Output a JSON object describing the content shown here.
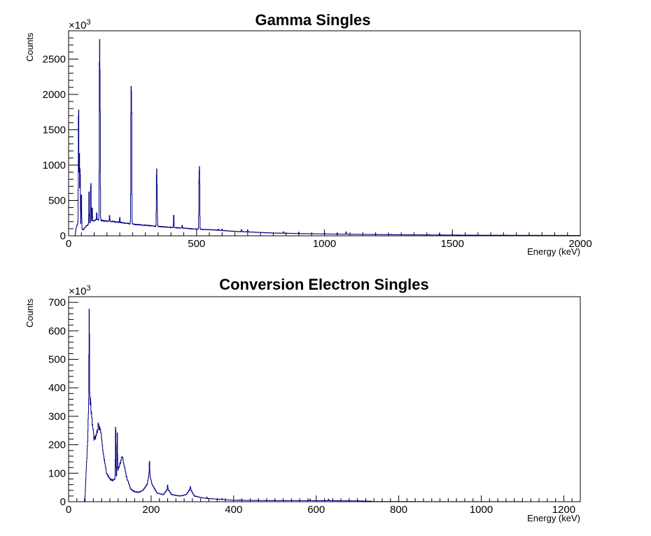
{
  "chart_data": [
    {
      "type": "line",
      "title": "Gamma Singles",
      "xlabel": "Energy (keV)",
      "ylabel": "Counts",
      "y_multiplier": "×10",
      "y_multiplier_exp": "3",
      "xlim": [
        0,
        2000
      ],
      "ylim": [
        0,
        2900
      ],
      "x_ticks": [
        0,
        500,
        1000,
        1500,
        2000
      ],
      "y_ticks": [
        0,
        500,
        1000,
        1500,
        2000,
        2500
      ],
      "x_minor_step": 50,
      "y_minor_step": 100,
      "grid": false,
      "line_color": "#000080",
      "baseline": [
        [
          0,
          0
        ],
        [
          25,
          0
        ],
        [
          30,
          120
        ],
        [
          40,
          200
        ],
        [
          55,
          80
        ],
        [
          70,
          140
        ],
        [
          90,
          200
        ],
        [
          110,
          230
        ],
        [
          140,
          210
        ],
        [
          180,
          200
        ],
        [
          220,
          180
        ],
        [
          260,
          160
        ],
        [
          300,
          150
        ],
        [
          340,
          135
        ],
        [
          380,
          125
        ],
        [
          420,
          115
        ],
        [
          460,
          105
        ],
        [
          500,
          95
        ],
        [
          560,
          85
        ],
        [
          600,
          75
        ],
        [
          650,
          62
        ],
        [
          700,
          55
        ],
        [
          800,
          40
        ],
        [
          900,
          32
        ],
        [
          1000,
          26
        ],
        [
          1100,
          22
        ],
        [
          1200,
          18
        ],
        [
          1300,
          15
        ],
        [
          1400,
          13
        ],
        [
          1500,
          11
        ],
        [
          1600,
          9
        ],
        [
          1700,
          8
        ],
        [
          1800,
          7
        ],
        [
          1900,
          6
        ],
        [
          2000,
          5
        ]
      ],
      "peaks": [
        {
          "x": 39,
          "y": 2000
        },
        {
          "x": 42,
          "y": 1280
        },
        {
          "x": 45,
          "y": 1020
        },
        {
          "x": 50,
          "y": 660
        },
        {
          "x": 80,
          "y": 700
        },
        {
          "x": 87,
          "y": 820
        },
        {
          "x": 92,
          "y": 430
        },
        {
          "x": 110,
          "y": 330
        },
        {
          "x": 121,
          "y": 2790
        },
        {
          "x": 123,
          "y": 1930
        },
        {
          "x": 160,
          "y": 300
        },
        {
          "x": 200,
          "y": 260
        },
        {
          "x": 244,
          "y": 1960
        },
        {
          "x": 246,
          "y": 1900
        },
        {
          "x": 344,
          "y": 950
        },
        {
          "x": 346,
          "y": 560
        },
        {
          "x": 411,
          "y": 320
        },
        {
          "x": 444,
          "y": 150
        },
        {
          "x": 510,
          "y": 880
        },
        {
          "x": 512,
          "y": 860
        },
        {
          "x": 586,
          "y": 100
        },
        {
          "x": 600,
          "y": 95
        },
        {
          "x": 676,
          "y": 90
        },
        {
          "x": 700,
          "y": 85
        },
        {
          "x": 840,
          "y": 60
        },
        {
          "x": 900,
          "y": 55
        },
        {
          "x": 1000,
          "y": 40
        },
        {
          "x": 1050,
          "y": 35
        },
        {
          "x": 1085,
          "y": 60
        },
        {
          "x": 1200,
          "y": 30
        },
        {
          "x": 1260,
          "y": 25
        },
        {
          "x": 1410,
          "y": 20
        },
        {
          "x": 1450,
          "y": 30
        },
        {
          "x": 1500,
          "y": 20
        }
      ]
    },
    {
      "type": "line",
      "title": "Conversion Electron Singles",
      "xlabel": "Energy (keV)",
      "ylabel": "Counts",
      "y_multiplier": "×10",
      "y_multiplier_exp": "3",
      "xlim": [
        0,
        1240
      ],
      "ylim": [
        0,
        720
      ],
      "x_ticks": [
        0,
        200,
        400,
        600,
        800,
        1000,
        1200
      ],
      "y_ticks": [
        0,
        100,
        200,
        300,
        400,
        500,
        600,
        700
      ],
      "x_minor_step": 20,
      "y_minor_step": 20,
      "grid": false,
      "line_color": "#000080",
      "baseline": [
        [
          0,
          0
        ],
        [
          38,
          0
        ],
        [
          40,
          20
        ],
        [
          43,
          120
        ],
        [
          46,
          210
        ],
        [
          49,
          370
        ],
        [
          53,
          350
        ],
        [
          57,
          280
        ],
        [
          62,
          220
        ],
        [
          67,
          230
        ],
        [
          72,
          270
        ],
        [
          78,
          250
        ],
        [
          85,
          160
        ],
        [
          92,
          100
        ],
        [
          100,
          80
        ],
        [
          108,
          75
        ],
        [
          115,
          85
        ],
        [
          120,
          110
        ],
        [
          130,
          160
        ],
        [
          140,
          90
        ],
        [
          150,
          45
        ],
        [
          160,
          35
        ],
        [
          170,
          33
        ],
        [
          180,
          40
        ],
        [
          190,
          60
        ],
        [
          196,
          100
        ],
        [
          202,
          60
        ],
        [
          215,
          30
        ],
        [
          230,
          25
        ],
        [
          240,
          45
        ],
        [
          250,
          25
        ],
        [
          270,
          20
        ],
        [
          285,
          25
        ],
        [
          295,
          45
        ],
        [
          305,
          20
        ],
        [
          330,
          12
        ],
        [
          370,
          8
        ],
        [
          400,
          5
        ],
        [
          500,
          4
        ],
        [
          600,
          4
        ],
        [
          700,
          3
        ],
        [
          730,
          2
        ],
        [
          740,
          0.5
        ],
        [
          800,
          0.5
        ],
        [
          1240,
          0
        ]
      ],
      "peaks": [
        {
          "x": 50,
          "y": 690
        },
        {
          "x": 114,
          "y": 285
        },
        {
          "x": 118,
          "y": 250
        },
        {
          "x": 196,
          "y": 145
        },
        {
          "x": 240,
          "y": 58
        },
        {
          "x": 295,
          "y": 55
        },
        {
          "x": 335,
          "y": 17
        },
        {
          "x": 372,
          "y": 12
        },
        {
          "x": 415,
          "y": 7
        },
        {
          "x": 585,
          "y": 9
        },
        {
          "x": 630,
          "y": 10
        },
        {
          "x": 700,
          "y": 5
        }
      ]
    }
  ]
}
